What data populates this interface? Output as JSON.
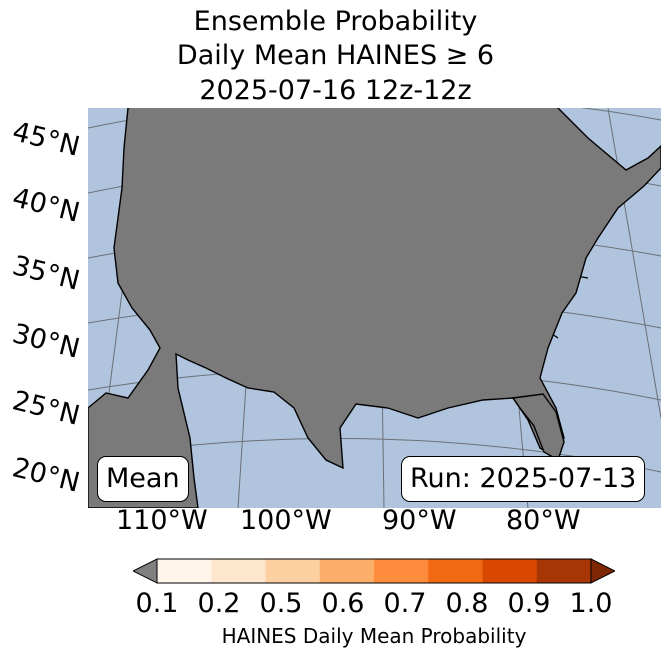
{
  "title": {
    "line1": "Ensemble Probability",
    "line2": "Daily Mean HAINES ≥ 6",
    "line3": "2025-07-16 12z-12z"
  },
  "map": {
    "region": "Continental United States",
    "colors": {
      "ocean": "#b0c4de",
      "land_no_data": "#7a7a7a",
      "lakes": "#b0c4de"
    },
    "lat_labels": [
      "45°N",
      "40°N",
      "35°N",
      "30°N",
      "25°N",
      "20°N"
    ],
    "lon_labels": [
      "110°W",
      "100°W",
      "90°W",
      "80°W"
    ]
  },
  "labels": {
    "mean": "Mean",
    "run": "Run: 2025-07-13"
  },
  "colorbar": {
    "label": "HAINES Daily Mean Probability",
    "ticks": [
      "0.1",
      "0.2",
      "0.5",
      "0.6",
      "0.7",
      "0.8",
      "0.9",
      "1.0"
    ],
    "colors": [
      "#fff5eb",
      "#fee6ce",
      "#fdd0a2",
      "#fdae6b",
      "#fd8d3c",
      "#f16913",
      "#d94801",
      "#a63603"
    ],
    "under_color": "#808080",
    "over_color": "#7f2704"
  }
}
